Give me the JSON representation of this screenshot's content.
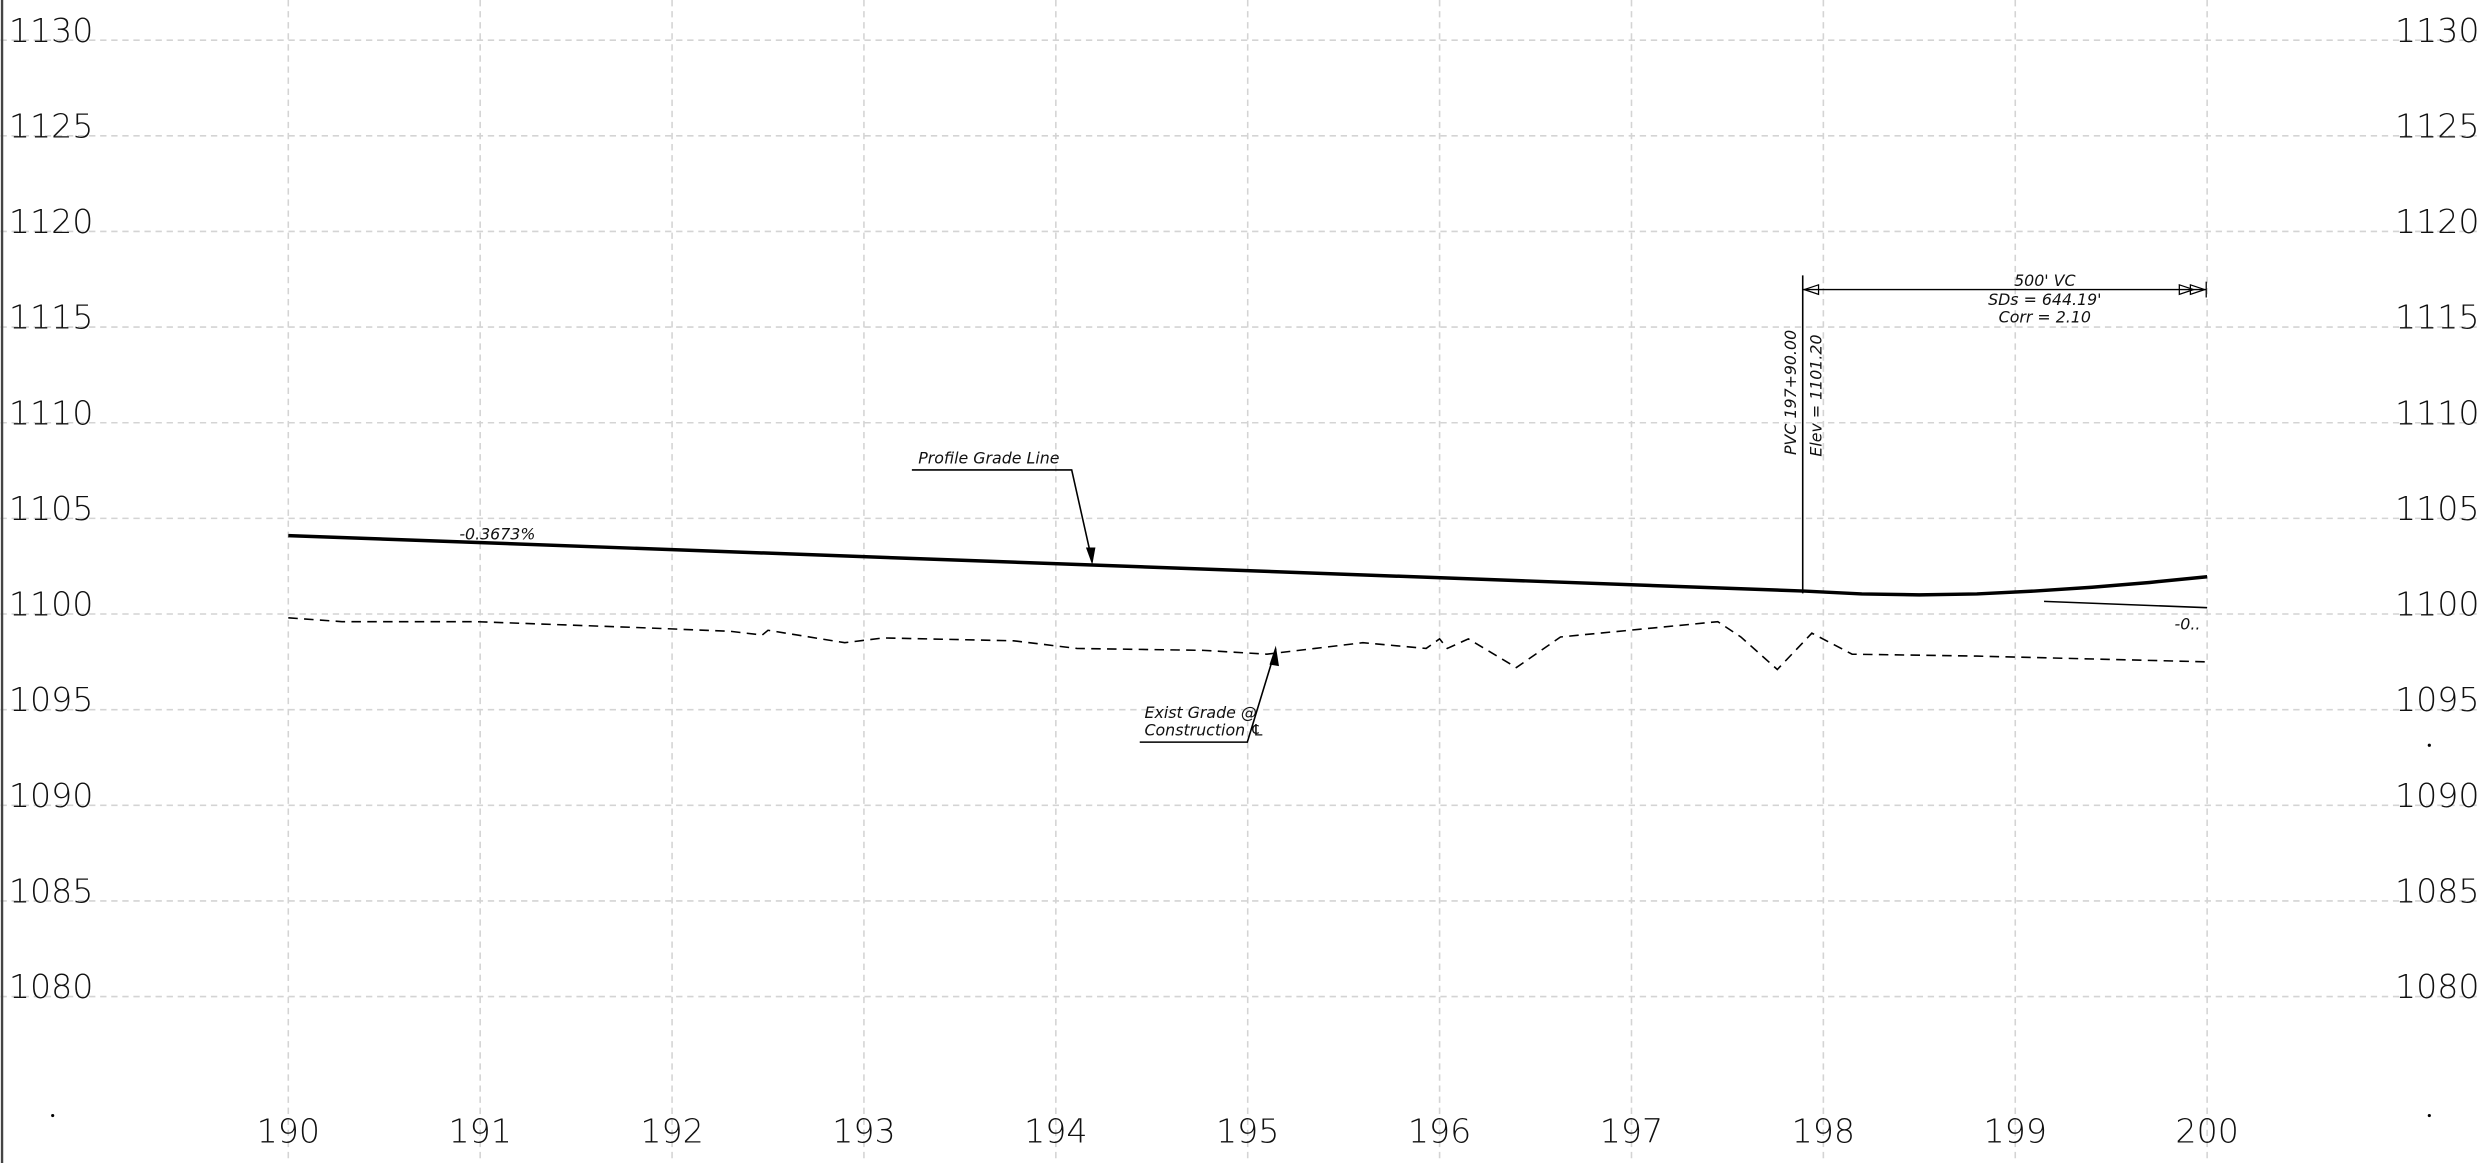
{
  "chart_data": {
    "type": "line",
    "xlim": [
      188.5,
      201.43
    ],
    "ylim": [
      1071.3,
      1132.1
    ],
    "xticks": [
      190,
      191,
      192,
      193,
      194,
      195,
      196,
      197,
      198,
      199,
      200
    ],
    "yticks": [
      1080,
      1085,
      1090,
      1095,
      1100,
      1105,
      1110,
      1115,
      1120,
      1125,
      1130
    ],
    "grid": true,
    "color": "#000000",
    "series": [
      {
        "name": "Profile Grade Line",
        "color": "#000000",
        "dashed": false,
        "x": [
          190,
          197.9,
          198.2,
          198.5,
          198.8,
          199.1,
          199.4,
          199.7,
          200
        ],
        "values": [
          1104.1,
          1101.2,
          1101.05,
          1101.0,
          1101.05,
          1101.2,
          1101.4,
          1101.65,
          1101.95
        ]
      },
      {
        "label_lines": [
          "Exist Grade @",
          "Construction ℄"
        ],
        "color": "#000000",
        "dashed": true,
        "x": [
          190,
          190.28,
          190.98,
          191.8,
          192.3,
          192.47,
          192.5,
          192.9,
          193.1,
          193.78,
          194.11,
          194.77,
          195.1,
          195.35,
          195.6,
          195.93,
          196.0,
          196.04,
          196.15,
          196.4,
          196.63,
          197.45,
          197.57,
          197.76,
          197.94,
          198.15,
          198.8,
          200
        ],
        "values": [
          1099.8,
          1099.6,
          1099.6,
          1099.3,
          1099.1,
          1098.9,
          1099.15,
          1098.5,
          1098.75,
          1098.6,
          1098.2,
          1098.1,
          1097.9,
          1098.2,
          1098.5,
          1098.2,
          1098.7,
          1098.2,
          1098.7,
          1097.2,
          1098.8,
          1099.6,
          1098.8,
          1097.1,
          1099.0,
          1097.9,
          1097.8,
          1097.5
        ]
      },
      {
        "color": "#000000",
        "dashed": false,
        "x": [
          199.15,
          200
        ],
        "values": [
          1100.66,
          1100.33
        ]
      }
    ],
    "annotations": {
      "grade": "-0.3673%",
      "pvc": "PVC 197+90.00",
      "elev": "Elev = 1101.20",
      "vc": "500' VC",
      "sds": "SDs = 644.19'",
      "corr": "Corr = 2.10",
      "next": "-0.."
    }
  }
}
